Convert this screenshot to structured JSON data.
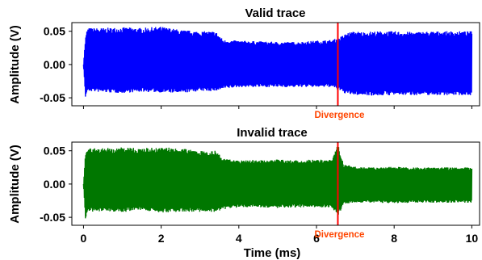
{
  "chart_data": [
    {
      "type": "line",
      "title": "Valid trace",
      "xlabel": "",
      "ylabel": "Amplitude (V)",
      "xlim": [
        -0.3,
        10.2
      ],
      "ylim": [
        -0.062,
        0.063
      ],
      "yticks": [
        "0.05",
        "0.00",
        "-0.05"
      ],
      "ytick_values": [
        0.05,
        0.0,
        -0.05
      ],
      "xticks_visible": false,
      "series": [
        {
          "color": "#0000ff",
          "envelope": {
            "t": [
              0.0,
              0.05,
              0.1,
              0.5,
              1.0,
              1.5,
              2.0,
              2.5,
              3.0,
              3.4,
              3.6,
              4.0,
              4.5,
              5.0,
              5.5,
              6.0,
              6.4,
              6.6,
              6.8,
              7.0,
              7.2,
              7.5,
              8.0,
              8.5,
              9.0,
              9.5,
              10.0
            ],
            "upper": [
              0.0,
              0.04,
              0.055,
              0.055,
              0.056,
              0.055,
              0.057,
              0.052,
              0.05,
              0.05,
              0.037,
              0.036,
              0.035,
              0.034,
              0.034,
              0.036,
              0.037,
              0.041,
              0.048,
              0.05,
              0.049,
              0.05,
              0.05,
              0.049,
              0.05,
              0.05,
              0.05
            ],
            "lower": [
              0.0,
              -0.05,
              -0.04,
              -0.042,
              -0.043,
              -0.041,
              -0.042,
              -0.043,
              -0.04,
              -0.04,
              -0.037,
              -0.034,
              -0.034,
              -0.034,
              -0.034,
              -0.034,
              -0.034,
              -0.04,
              -0.045,
              -0.046,
              -0.046,
              -0.047,
              -0.046,
              -0.046,
              -0.046,
              -0.046,
              -0.046
            ]
          }
        }
      ],
      "annotation": {
        "type": "vline",
        "x": 6.55,
        "color": "#ff0000",
        "label": "Divergence",
        "label_color": "#ff4500"
      }
    },
    {
      "type": "line",
      "title": "Invalid trace",
      "xlabel": "Time (ms)",
      "ylabel": "Amplitude (V)",
      "xlim": [
        -0.3,
        10.2
      ],
      "ylim": [
        -0.062,
        0.063
      ],
      "yticks": [
        "0.05",
        "0.00",
        "-0.05"
      ],
      "ytick_values": [
        0.05,
        0.0,
        -0.05
      ],
      "xticks": [
        "0",
        "2",
        "4",
        "6",
        "8",
        "10"
      ],
      "xtick_values": [
        0,
        2,
        4,
        6,
        8,
        10
      ],
      "series": [
        {
          "color": "#007700",
          "envelope": {
            "t": [
              0.0,
              0.05,
              0.1,
              0.5,
              1.0,
              1.5,
              2.0,
              2.5,
              3.0,
              3.4,
              3.6,
              4.0,
              4.5,
              5.0,
              5.5,
              6.0,
              6.4,
              6.55,
              6.7,
              7.0,
              7.5,
              8.0,
              8.5,
              9.0,
              9.5,
              10.0
            ],
            "upper": [
              0.0,
              0.045,
              0.054,
              0.054,
              0.055,
              0.054,
              0.055,
              0.054,
              0.05,
              0.05,
              0.038,
              0.036,
              0.036,
              0.037,
              0.036,
              0.037,
              0.036,
              0.06,
              0.03,
              0.026,
              0.025,
              0.026,
              0.025,
              0.025,
              0.025,
              0.025
            ],
            "lower": [
              0.0,
              -0.055,
              -0.042,
              -0.041,
              -0.042,
              -0.04,
              -0.043,
              -0.042,
              -0.042,
              -0.042,
              -0.038,
              -0.035,
              -0.035,
              -0.036,
              -0.035,
              -0.035,
              -0.035,
              -0.05,
              -0.03,
              -0.028,
              -0.028,
              -0.029,
              -0.028,
              -0.028,
              -0.028,
              -0.028
            ]
          }
        }
      ],
      "annotation": {
        "type": "vline",
        "x": 6.55,
        "color": "#ff0000",
        "label": "Divergence",
        "label_color": "#ff4500"
      }
    }
  ]
}
